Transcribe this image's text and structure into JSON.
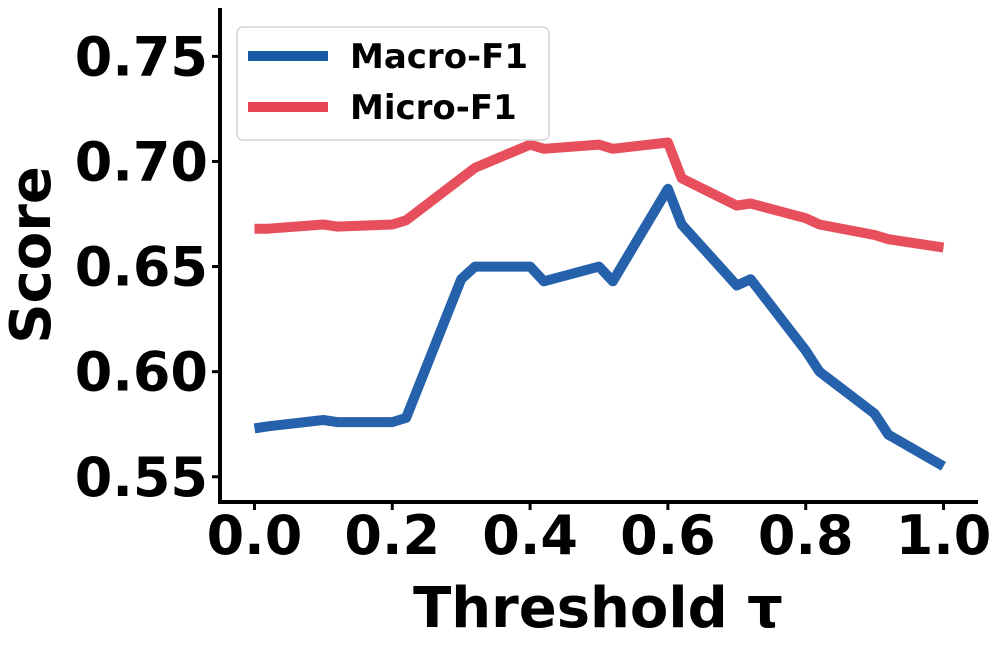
{
  "chart_data": {
    "type": "line",
    "xlabel": "Threshold τ",
    "ylabel": "Score",
    "xlim": [
      -0.05,
      1.05
    ],
    "ylim": [
      0.538,
      0.773
    ],
    "xticks": [
      0.0,
      0.2,
      0.4,
      0.6,
      0.8,
      1.0
    ],
    "xtick_labels": [
      "0.0",
      "0.2",
      "0.4",
      "0.6",
      "0.8",
      "1.0"
    ],
    "yticks": [
      0.55,
      0.6,
      0.65,
      0.7,
      0.75
    ],
    "ytick_labels": [
      "0.55",
      "0.60",
      "0.65",
      "0.70",
      "0.75"
    ],
    "grid": false,
    "legend_position": "top-left",
    "series": [
      {
        "name": "Macro-F1",
        "color": "#1a5aa6",
        "x": [
          0.0,
          0.02,
          0.1,
          0.12,
          0.2,
          0.22,
          0.3,
          0.32,
          0.4,
          0.42,
          0.5,
          0.52,
          0.6,
          0.62,
          0.7,
          0.72,
          0.8,
          0.82,
          0.9,
          0.92,
          1.0
        ],
        "y": [
          0.573,
          0.574,
          0.577,
          0.576,
          0.576,
          0.578,
          0.644,
          0.65,
          0.65,
          0.643,
          0.65,
          0.643,
          0.687,
          0.67,
          0.641,
          0.644,
          0.61,
          0.6,
          0.58,
          0.57,
          0.555
        ]
      },
      {
        "name": "Micro-F1",
        "color": "#e64653",
        "x": [
          0.0,
          0.02,
          0.1,
          0.12,
          0.2,
          0.22,
          0.3,
          0.32,
          0.4,
          0.42,
          0.5,
          0.52,
          0.6,
          0.62,
          0.7,
          0.72,
          0.8,
          0.82,
          0.9,
          0.92,
          1.0
        ],
        "y": [
          0.668,
          0.668,
          0.67,
          0.669,
          0.67,
          0.672,
          0.692,
          0.697,
          0.708,
          0.706,
          0.708,
          0.706,
          0.709,
          0.692,
          0.679,
          0.68,
          0.673,
          0.67,
          0.665,
          0.663,
          0.659
        ]
      }
    ]
  }
}
